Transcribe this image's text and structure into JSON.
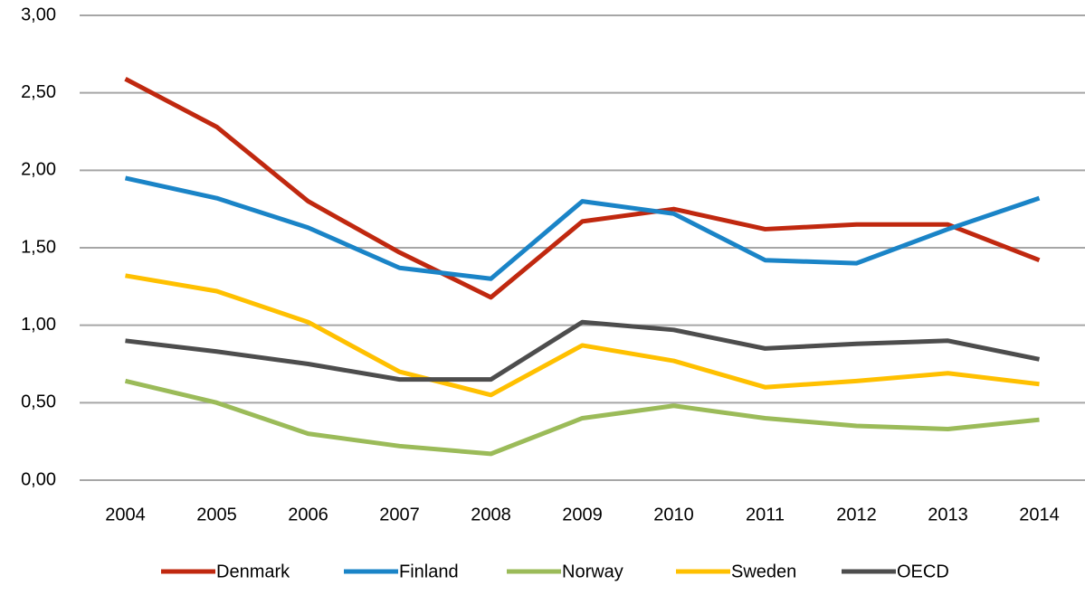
{
  "chart_data": {
    "type": "line",
    "categories": [
      "2004",
      "2005",
      "2006",
      "2007",
      "2008",
      "2009",
      "2010",
      "2011",
      "2012",
      "2013",
      "2014"
    ],
    "series": [
      {
        "name": "Denmark",
        "color": "#c0280f",
        "values": [
          2.59,
          2.28,
          1.8,
          1.47,
          1.18,
          1.67,
          1.75,
          1.62,
          1.65,
          1.65,
          1.42
        ]
      },
      {
        "name": "Finland",
        "color": "#1a84c7",
        "values": [
          1.95,
          1.82,
          1.63,
          1.37,
          1.3,
          1.8,
          1.72,
          1.42,
          1.4,
          1.62,
          1.82
        ]
      },
      {
        "name": "Norway",
        "color": "#9bbb59",
        "values": [
          0.64,
          0.5,
          0.3,
          0.22,
          0.17,
          0.4,
          0.48,
          0.4,
          0.35,
          0.33,
          0.39
        ]
      },
      {
        "name": "Sweden",
        "color": "#ffc000",
        "values": [
          1.32,
          1.22,
          1.02,
          0.7,
          0.55,
          0.87,
          0.77,
          0.6,
          0.64,
          0.69,
          0.62
        ]
      },
      {
        "name": "OECD",
        "color": "#4d4d4d",
        "values": [
          0.9,
          0.83,
          0.75,
          0.65,
          0.65,
          1.02,
          0.97,
          0.85,
          0.88,
          0.9,
          0.78
        ]
      }
    ],
    "ylim": [
      0,
      3
    ],
    "yticks": [
      {
        "value": 0,
        "label": "0,00"
      },
      {
        "value": 0.5,
        "label": "0,50"
      },
      {
        "value": 1,
        "label": "1,00"
      },
      {
        "value": 1.5,
        "label": "1,50"
      },
      {
        "value": 2,
        "label": "2,00"
      },
      {
        "value": 2.5,
        "label": "2,50"
      },
      {
        "value": 3,
        "label": "3,00"
      }
    ],
    "grid": true,
    "legend": "bottom"
  }
}
